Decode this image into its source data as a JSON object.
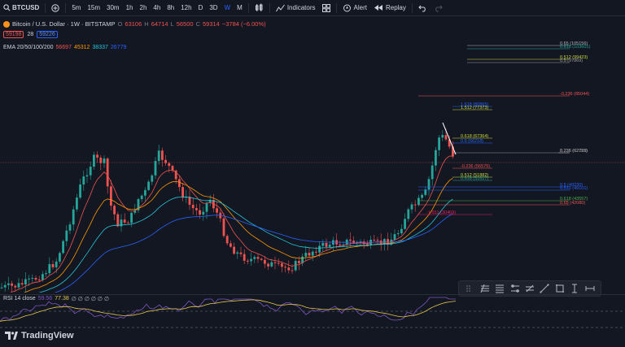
{
  "toolbar": {
    "symbol": "BTCUSD",
    "timeframes": [
      "5m",
      "15m",
      "30m",
      "1h",
      "2h",
      "4h",
      "8h",
      "12h",
      "D",
      "3D",
      "W",
      "M"
    ],
    "active_timeframe": "W",
    "indicators_label": "Indicators",
    "alert_label": "Alert",
    "replay_label": "Replay"
  },
  "legend": {
    "title": "Bitcoin / U.S. Dollar · 1W · BITSTAMP",
    "o_label": "O",
    "o_value": "63106",
    "h_label": "H",
    "h_value": "64714",
    "l_label": "L",
    "l_value": "56500",
    "c_label": "C",
    "c_value": "59314",
    "change": "−3784 (−6.00%)",
    "bid": "59198",
    "spread": "28",
    "ask": "59226"
  },
  "ema": {
    "label": "EMA 20/50/100/200",
    "v20": "56697",
    "v50": "45312",
    "v100": "38337",
    "v200": "26779"
  },
  "fib_labels": [
    {
      "text": "0.65 (105156)",
      "color": "#b2b5be"
    },
    {
      "text": "0.618 (103601)",
      "color": "#26a69a"
    },
    {
      "text": "0.512 (99423)",
      "color": "#cddc39"
    },
    {
      "text": "0.5 (97869)",
      "color": "#9e9e9e"
    },
    {
      "text": "-0.236 (85044)",
      "color": "#ef5350"
    },
    {
      "text": "1.618 (80865)",
      "color": "#2962ff"
    },
    {
      "text": "1.512 (77373)",
      "color": "#cddc39"
    },
    {
      "text": "0.618 (67364)",
      "color": "#cddc39"
    },
    {
      "text": "0.5 (66218)",
      "color": "#2962ff"
    },
    {
      "text": "0.236 (62759)",
      "color": "#9e9e9e"
    },
    {
      "text": "0.236 (62115)",
      "color": "#9e9e9e"
    },
    {
      "text": "-0.236 (56575)",
      "color": "#ef5350"
    },
    {
      "text": "0.512 (51882)",
      "color": "#cddc39"
    },
    {
      "text": "0.618 (51617)",
      "color": "#26a69a"
    },
    {
      "text": "0.5 (49230)",
      "color": "#2962ff"
    },
    {
      "text": "0.512 (49101)",
      "color": "#2962ff"
    },
    {
      "text": "0.618 (43557)",
      "color": "#4caf50"
    },
    {
      "text": "0.65 (42080)",
      "color": "#ef5350"
    },
    {
      "text": "-1.651 (30469)",
      "color": "#e91e63"
    }
  ],
  "rsi": {
    "label": "RSI 14 close",
    "value1": "59.56",
    "value2": "77.38",
    "extras": "∅ ∅ ∅ ∅ ∅ ∅"
  },
  "brand": "TradingView",
  "colors": {
    "up": "#26a69a",
    "down": "#ef5350",
    "bg": "#131722"
  }
}
